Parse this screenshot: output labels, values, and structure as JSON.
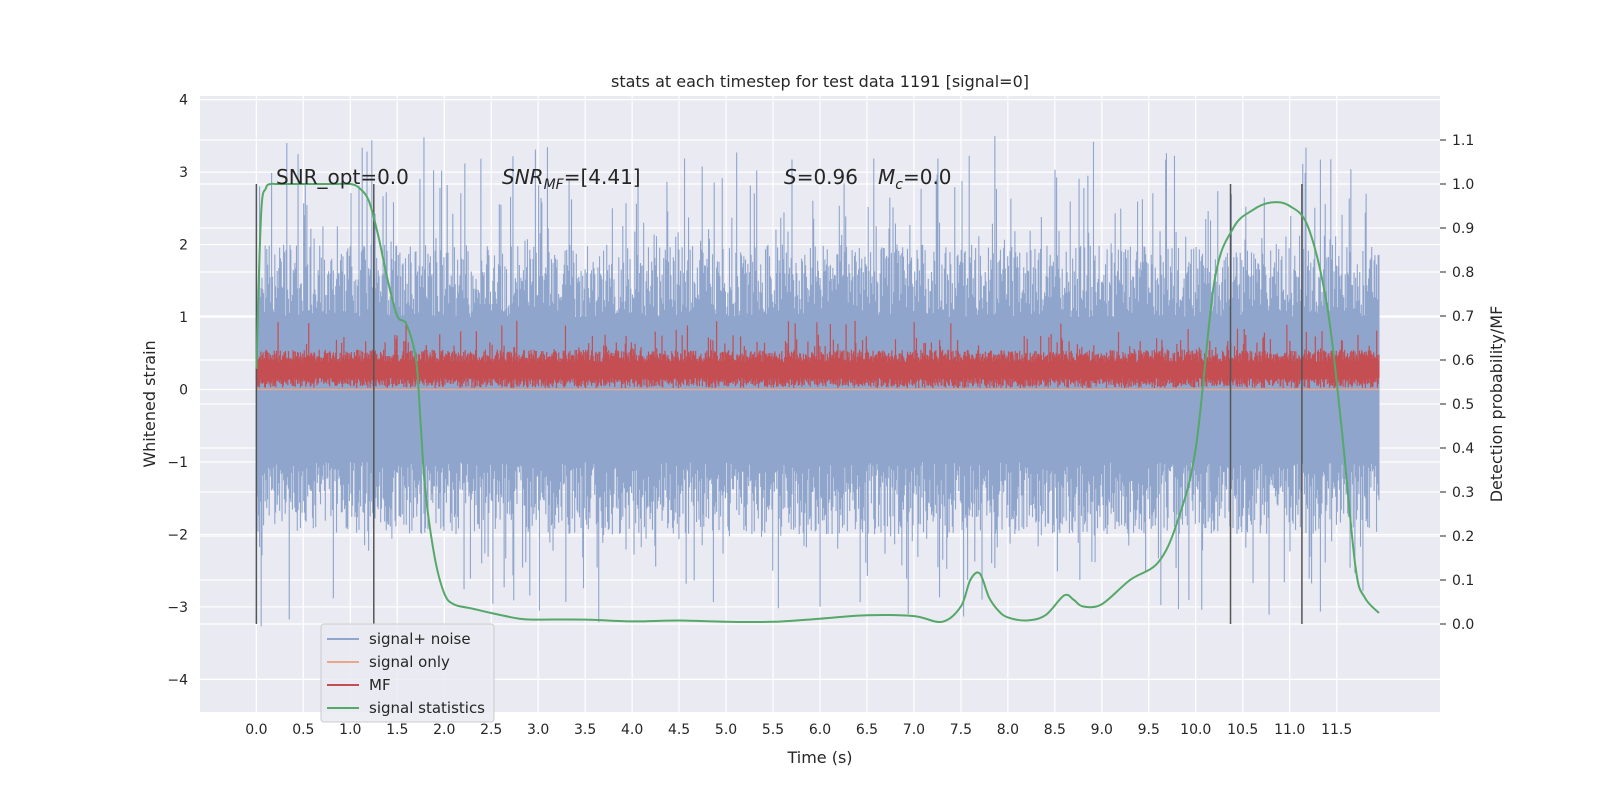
{
  "chart_data": {
    "type": "line",
    "title": "stats at each timestep for test data 1191 [signal=0]",
    "xlabel": "Time (s)",
    "ylabel": "Whitened strain",
    "ylabel_right": "Detection probability/MF",
    "xlim": [
      -0.6,
      12.6
    ],
    "ylim": [
      -4.45,
      4.05
    ],
    "ylim_right": [
      -0.2,
      1.2
    ],
    "x_ticks": [
      0.0,
      0.5,
      1.0,
      1.5,
      2.0,
      2.5,
      3.0,
      3.5,
      4.0,
      4.5,
      5.0,
      5.5,
      6.0,
      6.5,
      7.0,
      7.5,
      8.0,
      8.5,
      9.0,
      9.5,
      10.0,
      10.5,
      11.0,
      11.5
    ],
    "x_tick_labels": [
      "0.0",
      "0.5",
      "1.0",
      "1.5",
      "2.0",
      "2.5",
      "3.0",
      "3.5",
      "4.0",
      "4.5",
      "5.0",
      "5.5",
      "6.0",
      "6.5",
      "7.0",
      "7.5",
      "8.0",
      "8.5",
      "9.0",
      "9.5",
      "10.0",
      "10.5",
      "11.0",
      "11.5"
    ],
    "y_ticks": [
      -4,
      -3,
      -2,
      -1,
      0,
      1,
      2,
      3,
      4
    ],
    "y_tick_labels": [
      "−4",
      "−3",
      "−2",
      "−1",
      "0",
      "1",
      "2",
      "3",
      "4"
    ],
    "y_right_ticks": [
      0.0,
      0.1,
      0.2,
      0.3,
      0.4,
      0.5,
      0.6,
      0.7,
      0.8,
      0.9,
      1.0,
      1.1
    ],
    "y_right_tick_labels": [
      "0.0",
      "0.1",
      "0.2",
      "0.3",
      "0.4",
      "0.5",
      "0.6",
      "0.7",
      "0.8",
      "0.9",
      "1.0",
      "1.1"
    ],
    "grid": true,
    "annotations": {
      "snr_opt": "SNR_opt=0.0",
      "snr_mf_main": "SNR",
      "snr_mf_sub": "MF",
      "snr_mf_rest": "=[4.41]",
      "s_main": "S",
      "s_rest": "=0.96",
      "mc_main": "M",
      "mc_sub": "c",
      "mc_rest": "=0.0"
    },
    "vertical_markers": [
      0.0,
      1.25,
      10.37,
      11.13
    ],
    "legend": {
      "position": "lower-left",
      "entries": [
        "signal+ noise",
        "signal only",
        "MF",
        "signal statistics"
      ]
    },
    "series": [
      {
        "name": "signal+ noise",
        "axis": "left",
        "color": "#8fa5cc",
        "style": "dense-noise",
        "x_range": [
          0.0,
          11.95
        ],
        "typical_range": [
          -2.0,
          2.0
        ],
        "peak_max": 3.65,
        "peak_min": -3.3
      },
      {
        "name": "signal only",
        "axis": "left",
        "color": "#e8a78b",
        "style": "flat",
        "x_range": [
          0.0,
          11.95
        ],
        "value": 0.0
      },
      {
        "name": "MF",
        "axis": "left",
        "color": "#c44e52",
        "style": "dense-positive",
        "x_range": [
          0.0,
          11.95
        ],
        "typical_range": [
          0.05,
          0.55
        ],
        "peak_max": 0.98
      },
      {
        "name": "signal statistics",
        "axis": "right",
        "color": "#55a868",
        "style": "line",
        "x": [
          0.0,
          0.05,
          0.1,
          0.15,
          0.2,
          0.3,
          0.5,
          0.8,
          1.0,
          1.1,
          1.2,
          1.3,
          1.4,
          1.5,
          1.6,
          1.7,
          1.75,
          1.8,
          1.9,
          2.0,
          2.1,
          2.3,
          2.5,
          2.8,
          3.0,
          3.5,
          4.0,
          4.5,
          5.0,
          5.5,
          6.0,
          6.5,
          7.0,
          7.3,
          7.5,
          7.6,
          7.7,
          7.8,
          7.9,
          8.0,
          8.2,
          8.4,
          8.6,
          8.7,
          8.8,
          9.0,
          9.3,
          9.6,
          9.8,
          10.0,
          10.2,
          10.4,
          10.6,
          10.8,
          11.0,
          11.2,
          11.4,
          11.55,
          11.7,
          11.8,
          11.95
        ],
        "y": [
          0.58,
          0.93,
          0.99,
          1.0,
          1.0,
          1.0,
          1.0,
          1.0,
          1.0,
          0.99,
          0.96,
          0.88,
          0.78,
          0.7,
          0.68,
          0.6,
          0.45,
          0.3,
          0.15,
          0.07,
          0.045,
          0.035,
          0.025,
          0.012,
          0.01,
          0.01,
          0.006,
          0.008,
          0.005,
          0.005,
          0.012,
          0.02,
          0.018,
          0.005,
          0.04,
          0.1,
          0.115,
          0.06,
          0.03,
          0.015,
          0.008,
          0.02,
          0.065,
          0.055,
          0.04,
          0.045,
          0.1,
          0.14,
          0.23,
          0.4,
          0.78,
          0.9,
          0.94,
          0.958,
          0.95,
          0.9,
          0.72,
          0.45,
          0.13,
          0.06,
          0.025
        ]
      }
    ]
  }
}
